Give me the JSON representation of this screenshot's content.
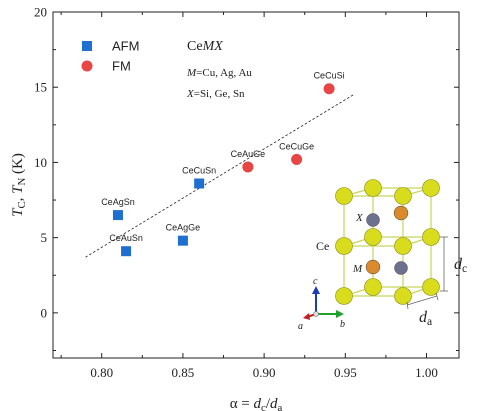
{
  "chart_data": {
    "type": "scatter",
    "xlabel": "α = d_c/d_a",
    "ylabel": "T_C, T_N (K)",
    "xlim": [
      0.77,
      1.02
    ],
    "ylim": [
      -3,
      20
    ],
    "x_ticks": [
      "0.80",
      "0.85",
      "0.90",
      "0.95",
      "1.00"
    ],
    "y_ticks": [
      "0",
      "5",
      "10",
      "15",
      "20"
    ],
    "grid": false,
    "legend_position": "top-left",
    "series": [
      {
        "name": "AFM",
        "marker": "square",
        "color": "#1f6fd1",
        "points": [
          {
            "label": "CeAgSn",
            "x": 0.81,
            "y": 6.5
          },
          {
            "label": "CeAuSn",
            "x": 0.815,
            "y": 4.1
          },
          {
            "label": "CeAgGe",
            "x": 0.85,
            "y": 4.8
          },
          {
            "label": "CeCuSn",
            "x": 0.86,
            "y": 8.6
          }
        ]
      },
      {
        "name": "FM",
        "marker": "circle",
        "color": "#e84545",
        "points": [
          {
            "label": "CeAuGe",
            "x": 0.89,
            "y": 9.7
          },
          {
            "label": "CeCuGe",
            "x": 0.92,
            "y": 10.2
          },
          {
            "label": "CeCuSi",
            "x": 0.94,
            "y": 14.9
          }
        ]
      }
    ],
    "trendline": {
      "style": "dashed",
      "x": [
        0.79,
        0.955
      ],
      "y": [
        3.7,
        14.5
      ]
    },
    "info": {
      "title": "CeMX",
      "m_line": "M=Cu, Ag, Au",
      "x_line": "X=Si, Ge, Sn"
    },
    "inset": {
      "ce_label": "Ce",
      "x_label": "X",
      "m_label": "M",
      "dc_label": "d_c",
      "da_label": "d_a",
      "axis_a": "a",
      "axis_b": "b",
      "axis_c": "c",
      "colors": {
        "ce": "#d8dc1c",
        "x": "#6e7090",
        "m": "#d98a2c",
        "frame": "#c7d65a"
      }
    }
  }
}
